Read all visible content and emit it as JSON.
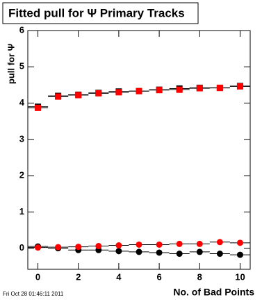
{
  "chart_data": {
    "type": "scatter",
    "title": "Fitted pull for Ψ  Primary Tracks",
    "y_label": "pull for Ψ",
    "x_label": "No. of Bad Points",
    "timestamp": "Fri Oct 28 01:46:11 2011",
    "x": [
      0,
      1,
      2,
      3,
      4,
      5,
      6,
      7,
      8,
      9,
      10
    ],
    "series": [
      {
        "color": "#000000",
        "marker": "square",
        "values": [
          3.9,
          4.2,
          4.23,
          4.28,
          4.32,
          4.33,
          4.37,
          4.4,
          4.42,
          4.42,
          4.47
        ]
      },
      {
        "color": "#ff0000",
        "marker": "square",
        "values": [
          3.87,
          4.18,
          4.22,
          4.27,
          4.3,
          4.33,
          4.36,
          4.37,
          4.41,
          4.42,
          4.46
        ]
      },
      {
        "color": "#000000",
        "marker": "circle",
        "values": [
          0.05,
          0.0,
          -0.05,
          -0.05,
          -0.08,
          -0.1,
          -0.12,
          -0.15,
          -0.1,
          -0.15,
          -0.18
        ]
      },
      {
        "color": "#ff0000",
        "marker": "circle",
        "values": [
          0.02,
          0.03,
          0.04,
          0.06,
          0.08,
          0.1,
          0.1,
          0.12,
          0.12,
          0.17,
          0.15
        ]
      }
    ],
    "xlim": [
      -0.5,
      10.5
    ],
    "xticks": [
      0,
      2,
      4,
      6,
      8,
      10
    ],
    "ylim": [
      -0.58,
      6
    ],
    "yticks": [
      0,
      1,
      2,
      3,
      4,
      5,
      6
    ],
    "grid": false
  }
}
